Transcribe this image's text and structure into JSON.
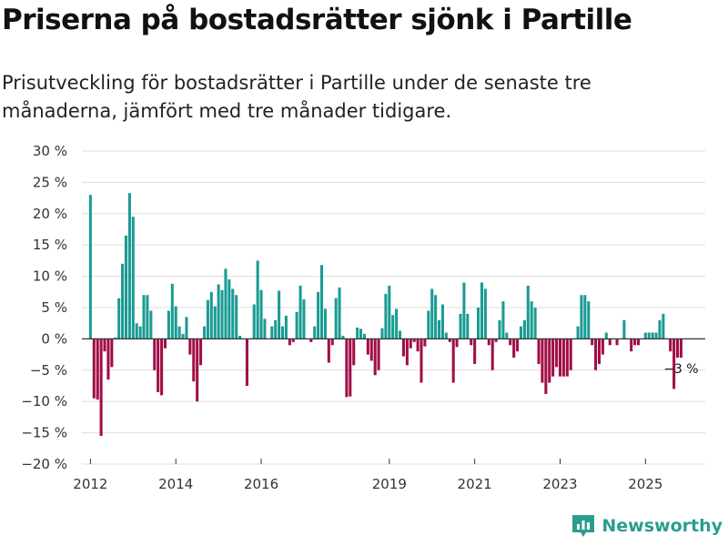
{
  "title": "Priserna på bostadsrätter sjönk i Partille",
  "subtitle": "Prisutveckling för bostadsrätter i Partille under de senaste tre månaderna, jämfört med tre månader tidigare.",
  "brand": {
    "name": "Newsworthy",
    "icon": "newsworthy-logo-icon",
    "color": "#2a9d90"
  },
  "colors": {
    "positive": "#1a9b93",
    "negative": "#a10d47",
    "grid": "#dddddd",
    "axis": "#333333"
  },
  "chart_data": {
    "type": "bar",
    "title": "Priserna på bostadsrätter sjönk i Partille",
    "xlabel": "",
    "ylabel": "",
    "ylim": [
      -20,
      30
    ],
    "y_ticks": [
      30,
      25,
      20,
      15,
      10,
      5,
      0,
      -5,
      -10,
      -15,
      -20
    ],
    "y_tick_labels": [
      "30 %",
      "25 %",
      "20 %",
      "15 %",
      "10 %",
      "5 %",
      "0 %",
      "−5 %",
      "−10 %",
      "−15 %",
      "−20 %"
    ],
    "x_range": [
      2011.8,
      2026.4
    ],
    "x_ticks": [
      {
        "label": "2012",
        "value": 2012.0
      },
      {
        "label": "2014",
        "value": 2014.0
      },
      {
        "label": "2016",
        "value": 2016.0
      },
      {
        "label": "2019",
        "value": 2019.0
      },
      {
        "label": "2021",
        "value": 2021.0
      },
      {
        "label": "2023",
        "value": 2023.0
      },
      {
        "label": "2025",
        "value": 2025.0
      }
    ],
    "bar_width_months": 1,
    "series": [
      {
        "name": "Prisutveckling",
        "values": [
          {
            "x": 2012.0,
            "y": 23
          },
          {
            "x": 2012.083,
            "y": -9.5
          },
          {
            "x": 2012.167,
            "y": -9.7
          },
          {
            "x": 2012.25,
            "y": -15.5
          },
          {
            "x": 2012.333,
            "y": -2
          },
          {
            "x": 2012.417,
            "y": -6.5
          },
          {
            "x": 2012.5,
            "y": -4.5
          },
          {
            "x": 2012.583,
            "y": 0.2
          },
          {
            "x": 2012.667,
            "y": 6.5
          },
          {
            "x": 2012.75,
            "y": 12
          },
          {
            "x": 2012.833,
            "y": 16.5
          },
          {
            "x": 2012.917,
            "y": 23.3
          },
          {
            "x": 2013.0,
            "y": 19.5
          },
          {
            "x": 2013.083,
            "y": 2.5
          },
          {
            "x": 2013.167,
            "y": 2
          },
          {
            "x": 2013.25,
            "y": 7
          },
          {
            "x": 2013.333,
            "y": 7
          },
          {
            "x": 2013.417,
            "y": 4.5
          },
          {
            "x": 2013.5,
            "y": -5
          },
          {
            "x": 2013.583,
            "y": -8.5
          },
          {
            "x": 2013.667,
            "y": -9
          },
          {
            "x": 2013.75,
            "y": -1.5
          },
          {
            "x": 2013.833,
            "y": 4.5
          },
          {
            "x": 2013.917,
            "y": 8.8
          },
          {
            "x": 2014.0,
            "y": 5.2
          },
          {
            "x": 2014.083,
            "y": 2
          },
          {
            "x": 2014.167,
            "y": 0.8
          },
          {
            "x": 2014.25,
            "y": 3.5
          },
          {
            "x": 2014.333,
            "y": -2.5
          },
          {
            "x": 2014.417,
            "y": -6.8
          },
          {
            "x": 2014.5,
            "y": -10
          },
          {
            "x": 2014.583,
            "y": -4.2
          },
          {
            "x": 2014.667,
            "y": 2
          },
          {
            "x": 2014.75,
            "y": 6.2
          },
          {
            "x": 2014.833,
            "y": 7.5
          },
          {
            "x": 2014.917,
            "y": 5.2
          },
          {
            "x": 2015.0,
            "y": 8.7
          },
          {
            "x": 2015.083,
            "y": 7.8
          },
          {
            "x": 2015.167,
            "y": 11.2
          },
          {
            "x": 2015.25,
            "y": 9.5
          },
          {
            "x": 2015.333,
            "y": 8
          },
          {
            "x": 2015.417,
            "y": 7
          },
          {
            "x": 2015.5,
            "y": 0.5
          },
          {
            "x": 2015.583,
            "y": 0
          },
          {
            "x": 2015.667,
            "y": -7.5
          },
          {
            "x": 2015.75,
            "y": 0
          },
          {
            "x": 2015.833,
            "y": 5.5
          },
          {
            "x": 2015.917,
            "y": 12.5
          },
          {
            "x": 2016.0,
            "y": 7.8
          },
          {
            "x": 2016.083,
            "y": 3.2
          },
          {
            "x": 2016.167,
            "y": 0
          },
          {
            "x": 2016.25,
            "y": 2
          },
          {
            "x": 2016.333,
            "y": 3
          },
          {
            "x": 2016.417,
            "y": 7.7
          },
          {
            "x": 2016.5,
            "y": 2
          },
          {
            "x": 2016.583,
            "y": 3.7
          },
          {
            "x": 2016.667,
            "y": -1
          },
          {
            "x": 2016.75,
            "y": -0.5
          },
          {
            "x": 2016.833,
            "y": 4.3
          },
          {
            "x": 2016.917,
            "y": 8.5
          },
          {
            "x": 2017.0,
            "y": 6.3
          },
          {
            "x": 2017.083,
            "y": 0
          },
          {
            "x": 2017.167,
            "y": -0.5
          },
          {
            "x": 2017.25,
            "y": 2
          },
          {
            "x": 2017.333,
            "y": 7.5
          },
          {
            "x": 2017.417,
            "y": 11.8
          },
          {
            "x": 2017.5,
            "y": 4.8
          },
          {
            "x": 2017.583,
            "y": -3.8
          },
          {
            "x": 2017.667,
            "y": -1
          },
          {
            "x": 2017.75,
            "y": 6.5
          },
          {
            "x": 2017.833,
            "y": 8.2
          },
          {
            "x": 2017.917,
            "y": 0.5
          },
          {
            "x": 2018.0,
            "y": -9.3
          },
          {
            "x": 2018.083,
            "y": -9.2
          },
          {
            "x": 2018.167,
            "y": -4.2
          },
          {
            "x": 2018.25,
            "y": 1.8
          },
          {
            "x": 2018.333,
            "y": 1.6
          },
          {
            "x": 2018.417,
            "y": 0.8
          },
          {
            "x": 2018.5,
            "y": -2.5
          },
          {
            "x": 2018.583,
            "y": -3.5
          },
          {
            "x": 2018.667,
            "y": -5.8
          },
          {
            "x": 2018.75,
            "y": -5
          },
          {
            "x": 2018.833,
            "y": 1.7
          },
          {
            "x": 2018.917,
            "y": 7.2
          },
          {
            "x": 2019.0,
            "y": 8.5
          },
          {
            "x": 2019.083,
            "y": 3.8
          },
          {
            "x": 2019.167,
            "y": 4.8
          },
          {
            "x": 2019.25,
            "y": 1.3
          },
          {
            "x": 2019.333,
            "y": -2.8
          },
          {
            "x": 2019.417,
            "y": -4.2
          },
          {
            "x": 2019.5,
            "y": -1.5
          },
          {
            "x": 2019.583,
            "y": -0.5
          },
          {
            "x": 2019.667,
            "y": -2
          },
          {
            "x": 2019.75,
            "y": -7
          },
          {
            "x": 2019.833,
            "y": -1.2
          },
          {
            "x": 2019.917,
            "y": 4.5
          },
          {
            "x": 2020.0,
            "y": 8
          },
          {
            "x": 2020.083,
            "y": 7
          },
          {
            "x": 2020.167,
            "y": 3
          },
          {
            "x": 2020.25,
            "y": 5.5
          },
          {
            "x": 2020.333,
            "y": 1
          },
          {
            "x": 2020.417,
            "y": -0.5
          },
          {
            "x": 2020.5,
            "y": -7
          },
          {
            "x": 2020.583,
            "y": -1.3
          },
          {
            "x": 2020.667,
            "y": 4
          },
          {
            "x": 2020.75,
            "y": 9
          },
          {
            "x": 2020.833,
            "y": 4
          },
          {
            "x": 2020.917,
            "y": -1
          },
          {
            "x": 2021.0,
            "y": -4
          },
          {
            "x": 2021.083,
            "y": 5
          },
          {
            "x": 2021.167,
            "y": 9
          },
          {
            "x": 2021.25,
            "y": 8
          },
          {
            "x": 2021.333,
            "y": -1
          },
          {
            "x": 2021.417,
            "y": -5
          },
          {
            "x": 2021.5,
            "y": -0.5
          },
          {
            "x": 2021.583,
            "y": 3
          },
          {
            "x": 2021.667,
            "y": 6
          },
          {
            "x": 2021.75,
            "y": 1
          },
          {
            "x": 2021.833,
            "y": -1
          },
          {
            "x": 2021.917,
            "y": -3
          },
          {
            "x": 2022.0,
            "y": -2
          },
          {
            "x": 2022.083,
            "y": 2
          },
          {
            "x": 2022.167,
            "y": 3
          },
          {
            "x": 2022.25,
            "y": 8.5
          },
          {
            "x": 2022.333,
            "y": 6
          },
          {
            "x": 2022.417,
            "y": 5
          },
          {
            "x": 2022.5,
            "y": -4
          },
          {
            "x": 2022.583,
            "y": -7
          },
          {
            "x": 2022.667,
            "y": -8.8
          },
          {
            "x": 2022.75,
            "y": -7
          },
          {
            "x": 2022.833,
            "y": -6
          },
          {
            "x": 2022.917,
            "y": -4.5
          },
          {
            "x": 2023.0,
            "y": -6
          },
          {
            "x": 2023.083,
            "y": -6
          },
          {
            "x": 2023.167,
            "y": -6
          },
          {
            "x": 2023.25,
            "y": -5
          },
          {
            "x": 2023.333,
            "y": 0
          },
          {
            "x": 2023.417,
            "y": 2
          },
          {
            "x": 2023.5,
            "y": 7
          },
          {
            "x": 2023.583,
            "y": 7
          },
          {
            "x": 2023.667,
            "y": 6
          },
          {
            "x": 2023.75,
            "y": -1
          },
          {
            "x": 2023.833,
            "y": -5
          },
          {
            "x": 2023.917,
            "y": -4
          },
          {
            "x": 2024.0,
            "y": -2.5
          },
          {
            "x": 2024.083,
            "y": 1
          },
          {
            "x": 2024.167,
            "y": -1
          },
          {
            "x": 2024.25,
            "y": 0
          },
          {
            "x": 2024.333,
            "y": -1
          },
          {
            "x": 2024.417,
            "y": 0
          },
          {
            "x": 2024.5,
            "y": 3
          },
          {
            "x": 2024.583,
            "y": 0
          },
          {
            "x": 2024.667,
            "y": -2
          },
          {
            "x": 2024.75,
            "y": -1
          },
          {
            "x": 2024.833,
            "y": -1
          },
          {
            "x": 2024.917,
            "y": 0
          },
          {
            "x": 2025.0,
            "y": 1
          },
          {
            "x": 2025.083,
            "y": 1
          },
          {
            "x": 2025.167,
            "y": 1
          },
          {
            "x": 2025.25,
            "y": 1
          },
          {
            "x": 2025.333,
            "y": 3
          },
          {
            "x": 2025.417,
            "y": 4
          },
          {
            "x": 2025.5,
            "y": 0
          },
          {
            "x": 2025.583,
            "y": -2
          },
          {
            "x": 2025.667,
            "y": -8
          },
          {
            "x": 2025.75,
            "y": -3
          },
          {
            "x": 2025.833,
            "y": -3
          }
        ]
      }
    ],
    "annotations": [
      {
        "text": "−3 %",
        "x": 2025.833,
        "y": -3
      }
    ]
  }
}
